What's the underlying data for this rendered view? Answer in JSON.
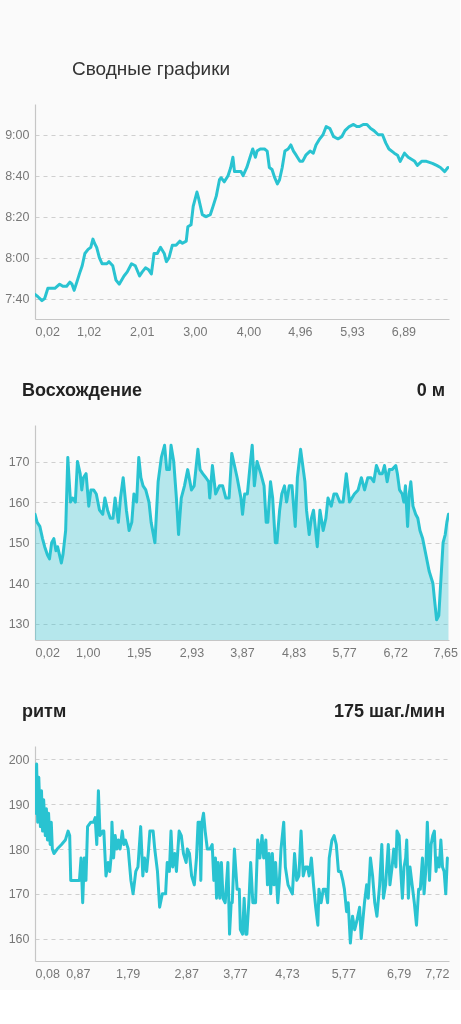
{
  "chart_data": [
    {
      "type": "line",
      "title": "Сводные графики",
      "x": [
        0.02,
        0.07,
        0.15,
        0.2,
        0.26,
        0.32,
        0.39,
        0.48,
        0.54,
        0.61,
        0.67,
        0.71,
        0.75,
        0.8,
        0.86,
        0.9,
        0.95,
        1.01,
        1.06,
        1.1,
        1.13,
        1.17,
        1.22,
        1.27,
        1.36,
        1.4,
        1.47,
        1.53,
        1.59,
        1.68,
        1.74,
        1.82,
        1.89,
        1.97,
        2.02,
        2.08,
        2.14,
        2.19,
        2.24,
        2.3,
        2.36,
        2.43,
        2.47,
        2.52,
        2.58,
        2.65,
        2.72,
        2.77,
        2.84,
        2.87,
        2.93,
        2.97,
        3.04,
        3.07,
        3.14,
        3.21,
        3.29,
        3.34,
        3.4,
        3.46,
        3.49,
        3.55,
        3.62,
        3.67,
        3.71,
        3.74,
        3.81,
        3.86,
        3.9,
        3.97,
        4.03,
        4.08,
        4.13,
        4.16,
        4.22,
        4.3,
        4.35,
        4.39,
        4.44,
        4.49,
        4.54,
        4.58,
        4.63,
        4.68,
        4.74,
        4.79,
        4.84,
        4.89,
        4.96,
        5.01,
        5.07,
        5.15,
        5.21,
        5.26,
        5.33,
        5.39,
        5.45,
        5.52,
        5.59,
        5.67,
        5.74,
        5.8,
        5.88,
        5.96,
        6.02,
        6.07,
        6.14,
        6.21,
        6.28,
        6.34,
        6.42,
        6.5,
        6.56,
        6.62,
        6.72,
        6.78,
        6.83,
        6.91,
        6.98,
        7.04,
        7.1,
        7.15,
        7.23,
        7.32,
        7.43,
        7.51,
        7.58,
        7.66,
        7.72
      ],
      "series": [
        {
          "color": "#29c3d1",
          "values": [
            462,
            461,
            459,
            460,
            465,
            465,
            465,
            467,
            466,
            466,
            468,
            467,
            464,
            468,
            473,
            476,
            482,
            484,
            485,
            489,
            487,
            485,
            480,
            477,
            477,
            478,
            476,
            469,
            467,
            471,
            473,
            477,
            476,
            471,
            473,
            475,
            474,
            472,
            482,
            482,
            485,
            482,
            478,
            480,
            486,
            486,
            488,
            487,
            488,
            495,
            496,
            505,
            512,
            509,
            501,
            500,
            501,
            505,
            510,
            518,
            519,
            517,
            520,
            524,
            529,
            522,
            522,
            522,
            520,
            524,
            529,
            533,
            529,
            532,
            533,
            533,
            532,
            524,
            523,
            519,
            516,
            518,
            524,
            532,
            533,
            535,
            532,
            530,
            527,
            527,
            530,
            532,
            531,
            535,
            538,
            540,
            544,
            543,
            539,
            538,
            539,
            542,
            544,
            545,
            544,
            544,
            545,
            545,
            543,
            542,
            540,
            540,
            536,
            533,
            531,
            530,
            527,
            531,
            529,
            528,
            527,
            525,
            527,
            527,
            526,
            525,
            524,
            522,
            524
          ]
        }
      ],
      "xlim": [
        0.02,
        7.74
      ],
      "xticks": [
        {
          "value": 0.02,
          "label": "0,02"
        },
        {
          "value": 1.02,
          "label": "1,02"
        },
        {
          "value": 2.01,
          "label": "2,01"
        },
        {
          "value": 3.0,
          "label": "3,00"
        },
        {
          "value": 4.0,
          "label": "4,00"
        },
        {
          "value": 4.96,
          "label": "4,96"
        },
        {
          "value": 5.93,
          "label": "5,93"
        },
        {
          "value": 6.89,
          "label": "6,89"
        }
      ],
      "ylim": [
        450,
        555
      ],
      "yticks": [
        {
          "value": 460,
          "label": "7:40"
        },
        {
          "value": 480,
          "label": "8:00"
        },
        {
          "value": 500,
          "label": "8:20"
        },
        {
          "value": 520,
          "label": "8:40"
        },
        {
          "value": 540,
          "label": "9:00"
        }
      ],
      "grid": "y"
    },
    {
      "type": "area",
      "title": "Восхождение",
      "annotations": [
        "0 м"
      ],
      "x": [
        0.02,
        0.06,
        0.11,
        0.16,
        0.2,
        0.25,
        0.29,
        0.33,
        0.37,
        0.41,
        0.44,
        0.51,
        0.54,
        0.59,
        0.63,
        0.68,
        0.72,
        0.77,
        0.81,
        0.86,
        0.89,
        0.92,
        0.97,
        1.02,
        1.06,
        1.11,
        1.16,
        1.22,
        1.28,
        1.32,
        1.37,
        1.42,
        1.47,
        1.51,
        1.57,
        1.61,
        1.66,
        1.72,
        1.77,
        1.82,
        1.86,
        1.91,
        1.95,
        1.99,
        2.03,
        2.08,
        2.14,
        2.18,
        2.25,
        2.31,
        2.37,
        2.43,
        2.47,
        2.52,
        2.55,
        2.6,
        2.65,
        2.69,
        2.74,
        2.8,
        2.86,
        2.93,
        2.98,
        3.05,
        3.09,
        3.14,
        3.2,
        3.25,
        3.27,
        3.32,
        3.38,
        3.45,
        3.51,
        3.57,
        3.63,
        3.68,
        3.78,
        3.85,
        3.88,
        3.92,
        3.97,
        4.02,
        4.06,
        4.1,
        4.15,
        4.22,
        4.28,
        4.32,
        4.35,
        4.4,
        4.44,
        4.49,
        4.52,
        4.57,
        4.61,
        4.66,
        4.7,
        4.75,
        4.8,
        4.86,
        4.9,
        4.96,
        5.04,
        5.07,
        5.12,
        5.16,
        5.2,
        5.27,
        5.32,
        5.38,
        5.43,
        5.47,
        5.53,
        5.58,
        5.63,
        5.69,
        5.75,
        5.81,
        5.87,
        5.96,
        6.03,
        6.09,
        6.15,
        6.21,
        6.27,
        6.32,
        6.37,
        6.43,
        6.48,
        6.52,
        6.57,
        6.61,
        6.66,
        6.73,
        6.76,
        6.8,
        6.85,
        6.88,
        6.91,
        6.95,
        6.98,
        7.01,
        7.05,
        7.1,
        7.14,
        7.18,
        7.23,
        7.29,
        7.35,
        7.42,
        7.45,
        7.49,
        7.53,
        7.57,
        7.61,
        7.65,
        7.68,
        7.71
      ],
      "series": [
        {
          "color": "#29c3d1",
          "values": [
            157,
            155,
            154,
            151,
            149,
            147,
            146,
            150,
            151,
            148,
            149,
            145,
            147,
            153,
            171,
            160,
            161,
            160,
            170,
            167,
            163,
            166,
            167,
            159,
            163,
            163,
            162,
            158,
            157,
            161,
            158,
            156,
            156,
            161,
            155,
            161,
            166,
            158,
            153,
            155,
            162,
            160,
            171,
            166,
            164,
            163,
            160,
            155,
            150,
            165,
            171,
            174,
            168,
            168,
            174,
            170,
            161,
            152,
            161,
            164,
            168,
            163,
            164,
            173,
            168,
            167,
            166,
            165,
            161,
            169,
            162,
            164,
            164,
            161,
            161,
            172,
            166,
            161,
            157,
            162,
            162,
            169,
            174,
            164,
            170,
            167,
            164,
            155,
            155,
            165,
            161,
            150,
            150,
            158,
            162,
            164,
            160,
            164,
            164,
            154,
            166,
            173,
            165,
            158,
            152,
            156,
            158,
            149,
            158,
            153,
            156,
            161,
            159,
            162,
            162,
            160,
            160,
            167,
            160,
            162,
            163,
            166,
            163,
            166,
            166,
            165,
            169,
            167,
            167,
            169,
            165,
            168,
            168,
            169,
            167,
            163,
            162,
            160,
            164,
            154,
            162,
            165,
            159,
            157,
            156,
            153,
            151,
            147,
            143,
            140,
            136,
            131,
            132,
            141,
            150,
            152,
            155,
            157
          ]
        }
      ],
      "xlim": [
        0.02,
        7.72
      ],
      "xticks": [
        {
          "value": 0.02,
          "label": "0,02"
        },
        {
          "value": 1.0,
          "label": "1,00"
        },
        {
          "value": 1.95,
          "label": "1,95"
        },
        {
          "value": 2.93,
          "label": "2,93"
        },
        {
          "value": 3.87,
          "label": "3,87"
        },
        {
          "value": 4.83,
          "label": "4,83"
        },
        {
          "value": 5.77,
          "label": "5,77"
        },
        {
          "value": 6.72,
          "label": "6,72"
        },
        {
          "value": 7.65,
          "label": "7,65"
        }
      ],
      "ylim": [
        126,
        179
      ],
      "yticks": [
        130,
        140,
        150,
        160,
        170
      ],
      "grid": "y"
    },
    {
      "type": "line",
      "title": "ритм",
      "annotations": [
        "175 шаг./мин"
      ],
      "x": [
        0.08,
        0.11,
        0.13,
        0.15,
        0.18,
        0.2,
        0.22,
        0.24,
        0.27,
        0.29,
        0.31,
        0.33,
        0.36,
        0.38,
        0.4,
        0.43,
        0.49,
        0.57,
        0.64,
        0.69,
        0.72,
        0.74,
        0.8,
        0.85,
        0.9,
        0.93,
        0.96,
        0.99,
        1.02,
        1.05,
        1.11,
        1.16,
        1.19,
        1.22,
        1.25,
        1.28,
        1.33,
        1.35,
        1.39,
        1.43,
        1.46,
        1.49,
        1.5,
        1.53,
        1.56,
        1.59,
        1.62,
        1.65,
        1.69,
        1.72,
        1.75,
        1.8,
        1.85,
        1.89,
        1.94,
        1.98,
        2.03,
        2.07,
        2.1,
        2.14,
        2.17,
        2.2,
        2.26,
        2.29,
        2.34,
        2.38,
        2.43,
        2.49,
        2.52,
        2.56,
        2.59,
        2.62,
        2.66,
        2.69,
        2.74,
        2.78,
        2.82,
        2.87,
        2.89,
        2.93,
        2.97,
        3.02,
        3.06,
        3.09,
        3.12,
        3.14,
        3.16,
        3.19,
        3.22,
        3.26,
        3.31,
        3.35,
        3.38,
        3.41,
        3.43,
        3.46,
        3.49,
        3.52,
        3.55,
        3.59,
        3.64,
        3.67,
        3.7,
        3.72,
        3.76,
        3.81,
        3.85,
        3.87,
        3.91,
        3.94,
        3.97,
        3.99,
        4.03,
        4.06,
        4.1,
        4.15,
        4.19,
        4.23,
        4.27,
        4.3,
        4.34,
        4.37,
        4.4,
        4.43,
        4.46,
        4.49,
        4.52,
        4.56,
        4.59,
        4.62,
        4.67,
        4.7,
        4.75,
        4.79,
        4.83,
        4.87,
        4.91,
        4.95,
        4.99,
        5.03,
        5.07,
        5.11,
        5.14,
        5.18,
        5.22,
        5.26,
        5.3,
        5.32,
        5.36,
        5.4,
        5.44,
        5.48,
        5.51,
        5.56,
        5.6,
        5.64,
        5.68,
        5.72,
        5.76,
        5.79,
        5.83,
        5.86,
        5.9,
        5.94,
        5.98,
        6.02,
        6.07,
        6.1,
        6.13,
        6.16,
        6.2,
        6.23,
        6.27,
        6.31,
        6.35,
        6.39,
        6.44,
        6.48,
        6.51,
        6.55,
        6.6,
        6.63,
        6.67,
        6.7,
        6.74,
        6.76,
        6.8,
        6.83,
        6.86,
        6.89,
        6.92,
        6.94,
        6.97,
        7.0,
        7.04,
        7.08,
        7.12,
        7.16,
        7.19,
        7.23,
        7.26,
        7.29,
        7.32,
        7.36,
        7.39,
        7.42,
        7.45,
        7.48,
        7.51,
        7.54,
        7.57,
        7.6,
        7.63,
        7.66,
        7.69
      ],
      "series": [
        {
          "color": "#29c3d1",
          "values": [
            188,
            199,
            186,
            196,
            185,
            193,
            184,
            191,
            183,
            189,
            182,
            188,
            181,
            186,
            180,
            179,
            180,
            181,
            182,
            184,
            183,
            173,
            173,
            173,
            173,
            178,
            168,
            178,
            173,
            185,
            186,
            186,
            187,
            181,
            193,
            183,
            184,
            184,
            174,
            177,
            175,
            179,
            186,
            178,
            183,
            180,
            182,
            180,
            184,
            181,
            182,
            180,
            173,
            170,
            175,
            176,
            185,
            174,
            178,
            175,
            179,
            184,
            184,
            180,
            175,
            167,
            170,
            170,
            177,
            175,
            184,
            176,
            179,
            175,
            184,
            183,
            179,
            177,
            180,
            179,
            174,
            172,
            178,
            186,
            186,
            173,
            186,
            188,
            184,
            180,
            180,
            181,
            173,
            178,
            169,
            177,
            169,
            177,
            169,
            168,
            177,
            161,
            168,
            168,
            180,
            171,
            171,
            162,
            161,
            169,
            161,
            161,
            169,
            177,
            168,
            168,
            182,
            178,
            183,
            178,
            182,
            172,
            179,
            170,
            179,
            172,
            177,
            168,
            173,
            180,
            186,
            176,
            172,
            171,
            170,
            179,
            173,
            174,
            184,
            174,
            176,
            176,
            174,
            178,
            172,
            167,
            163,
            171,
            168,
            171,
            171,
            168,
            178,
            182,
            183,
            181,
            175,
            175,
            173,
            171,
            166,
            168,
            159,
            165,
            162,
            164,
            167,
            160,
            164,
            168,
            172,
            169,
            178,
            174,
            168,
            165,
            172,
            181,
            169,
            172,
            181,
            172,
            176,
            180,
            176,
            184,
            183,
            175,
            169,
            176,
            178,
            182,
            169,
            176,
            172,
            168,
            163,
            171,
            171,
            178,
            170,
            175,
            186,
            173,
            181,
            183,
            184,
            175,
            178,
            176,
            182,
            176,
            175,
            170,
            178
          ]
        }
      ],
      "xlim": [
        0.08,
        7.72
      ],
      "xticks": [
        {
          "value": 0.08,
          "label": "0,08"
        },
        {
          "value": 0.87,
          "label": "0,87"
        },
        {
          "value": 1.79,
          "label": "1,79"
        },
        {
          "value": 2.87,
          "label": "2,87"
        },
        {
          "value": 3.77,
          "label": "3,77"
        },
        {
          "value": 4.73,
          "label": "4,73"
        },
        {
          "value": 5.77,
          "label": "5,77"
        },
        {
          "value": 6.79,
          "label": "6,79"
        },
        {
          "value": 7.72,
          "label": "7,72"
        }
      ],
      "ylim": [
        155,
        203
      ],
      "yticks": [
        160,
        170,
        180,
        190,
        200
      ],
      "grid": "y"
    }
  ]
}
